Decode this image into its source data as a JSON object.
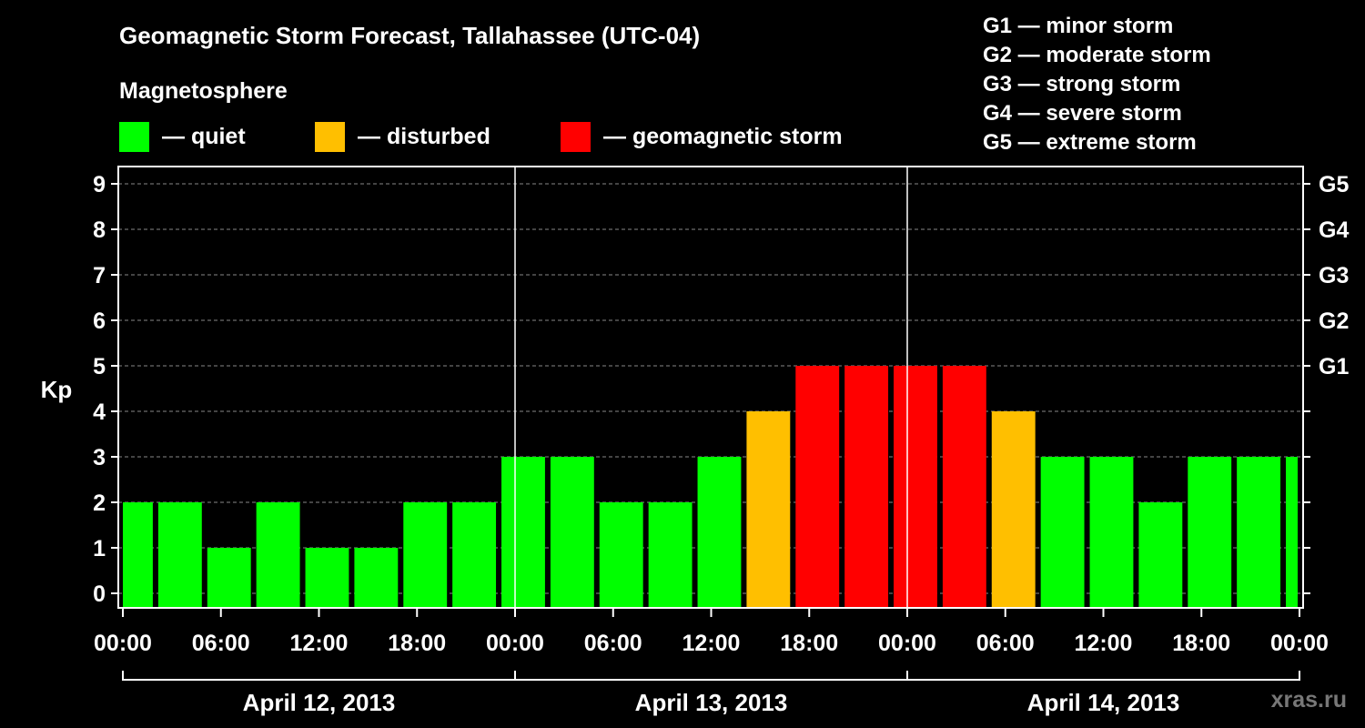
{
  "header": {
    "title": "Geomagnetic Storm Forecast, Tallahassee (UTC-04)",
    "section_label": "Magnetosphere"
  },
  "legend": [
    {
      "label": "— quiet",
      "color": "#00ff00"
    },
    {
      "label": "— disturbed",
      "color": "#ffbf00"
    },
    {
      "label": "— geomagnetic storm",
      "color": "#ff0000"
    }
  ],
  "g_scale": [
    "G1 — minor storm",
    "G2 — moderate storm",
    "G3 — strong storm",
    "G4 — severe storm",
    "G5 — extreme storm"
  ],
  "watermark": "xras.ru",
  "colors": {
    "quiet": "#00ff00",
    "disturbed": "#ffbf00",
    "storm": "#ff0000",
    "background": "#000000",
    "grid": "#888888"
  },
  "chart_data": {
    "type": "bar",
    "ylabel": "Kp",
    "ylim": [
      0,
      9
    ],
    "y_ticks": [
      "0",
      "1",
      "2",
      "3",
      "4",
      "5",
      "6",
      "7",
      "8",
      "9"
    ],
    "right_axis_labels": [
      {
        "kp": 5,
        "label": "G1"
      },
      {
        "kp": 6,
        "label": "G2"
      },
      {
        "kp": 7,
        "label": "G3"
      },
      {
        "kp": 8,
        "label": "G4"
      },
      {
        "kp": 9,
        "label": "G5"
      }
    ],
    "x_tick_labels": [
      "00:00",
      "06:00",
      "12:00",
      "18:00",
      "00:00",
      "06:00",
      "12:00",
      "18:00",
      "00:00",
      "06:00",
      "12:00",
      "18:00",
      "00:00"
    ],
    "x_range_hours": [
      0,
      72
    ],
    "days": [
      "April 12, 2013",
      "April 13, 2013",
      "April 14, 2013"
    ],
    "grid": true,
    "bar_start_hours": [
      0,
      2,
      5,
      8,
      11,
      14,
      17,
      20,
      23,
      26,
      29,
      32,
      35,
      38,
      41,
      44,
      47,
      50,
      53,
      56,
      59,
      62,
      65,
      68,
      71
    ],
    "values": [
      2,
      2,
      1,
      2,
      1,
      1,
      2,
      2,
      3,
      3,
      2,
      2,
      3,
      4,
      5,
      5,
      5,
      5,
      4,
      3,
      3,
      2,
      3,
      3,
      3
    ],
    "status": [
      "quiet",
      "quiet",
      "quiet",
      "quiet",
      "quiet",
      "quiet",
      "quiet",
      "quiet",
      "quiet",
      "quiet",
      "quiet",
      "quiet",
      "quiet",
      "disturbed",
      "storm",
      "storm",
      "storm",
      "storm",
      "disturbed",
      "quiet",
      "quiet",
      "quiet",
      "quiet",
      "quiet",
      "quiet"
    ]
  }
}
